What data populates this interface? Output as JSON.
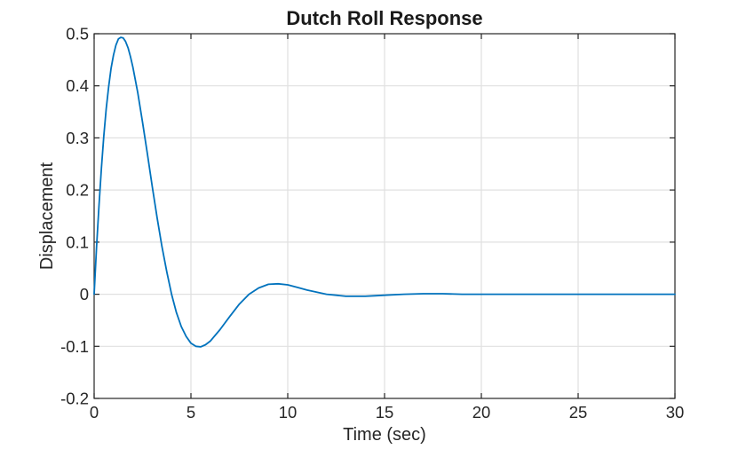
{
  "chart_data": {
    "type": "line",
    "title": "Dutch Roll Response",
    "xlabel": "Time (sec)",
    "ylabel": "Displacement",
    "xlim": [
      0,
      30
    ],
    "ylim": [
      -0.2,
      0.5
    ],
    "xticks": [
      0,
      5,
      10,
      15,
      20,
      25,
      30
    ],
    "yticks": [
      -0.2,
      -0.1,
      0,
      0.1,
      0.2,
      0.3,
      0.4,
      0.5
    ],
    "grid": true,
    "legend": "none",
    "colors": {
      "line": "#0072BD",
      "axis": "#262626",
      "grid": "#e0e0e0",
      "title": "#1a1a1a",
      "background": "#ffffff"
    },
    "series": [
      {
        "name": "displacement-response",
        "x": [
          0,
          0.125,
          0.25,
          0.375,
          0.5,
          0.625,
          0.75,
          0.875,
          1,
          1.125,
          1.25,
          1.375,
          1.5,
          1.625,
          1.75,
          1.875,
          2,
          2.25,
          2.5,
          2.75,
          3,
          3.25,
          3.5,
          3.75,
          4,
          4.25,
          4.5,
          4.75,
          5,
          5.25,
          5.5,
          5.75,
          6,
          6.5,
          7,
          7.5,
          8,
          8.5,
          9,
          9.5,
          10,
          10.5,
          11,
          11.5,
          12,
          12.5,
          13,
          13.5,
          14,
          14.5,
          15,
          16,
          17,
          18,
          19,
          20,
          21,
          22,
          23,
          24,
          25,
          26,
          27,
          28,
          29,
          30
        ],
        "y": [
          0,
          0.09,
          0.171,
          0.242,
          0.304,
          0.356,
          0.399,
          0.434,
          0.459,
          0.478,
          0.49,
          0.493,
          0.492,
          0.485,
          0.473,
          0.456,
          0.436,
          0.387,
          0.33,
          0.269,
          0.207,
          0.147,
          0.092,
          0.043,
          0,
          -0.035,
          -0.062,
          -0.081,
          -0.094,
          -0.1,
          -0.101,
          -0.097,
          -0.09,
          -0.068,
          -0.043,
          -0.019,
          0,
          0.012,
          0.019,
          0.02,
          0.018,
          0.013,
          0.008,
          0.004,
          0,
          -0.002,
          -0.004,
          -0.004,
          -0.004,
          -0.003,
          -0.002,
          0,
          0.001,
          0.001,
          0,
          0,
          0,
          0,
          0,
          0,
          0,
          0,
          0,
          0,
          0,
          0
        ]
      }
    ]
  }
}
